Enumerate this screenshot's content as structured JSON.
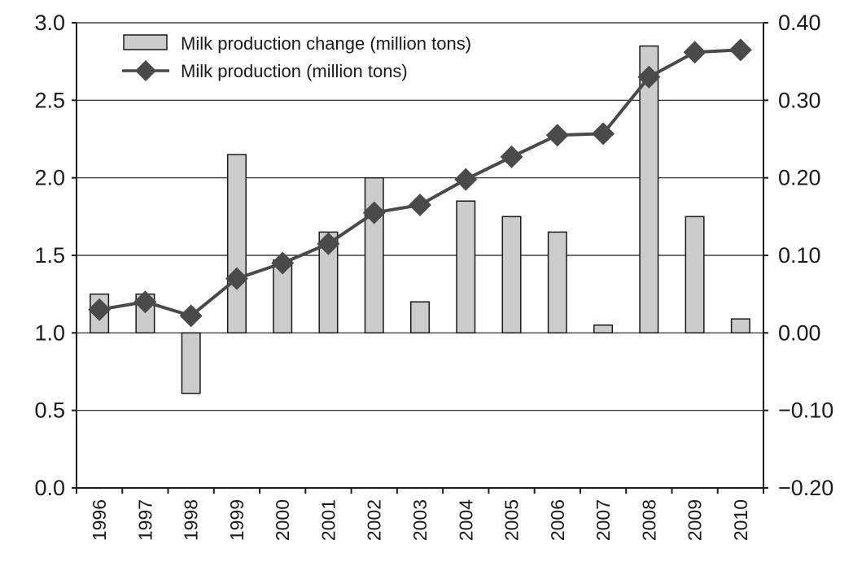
{
  "chart_data": {
    "type": "bar+line",
    "categories": [
      "1996",
      "1997",
      "1998",
      "1999",
      "2000",
      "2001",
      "2002",
      "2003",
      "2004",
      "2005",
      "2006",
      "2007",
      "2008",
      "2009",
      "2010"
    ],
    "series": [
      {
        "name": "Milk production change (million tons)",
        "kind": "bar",
        "axis": "left",
        "values": [
          1.25,
          1.25,
          0.61,
          2.15,
          1.47,
          1.65,
          2.0,
          1.2,
          1.85,
          1.75,
          1.65,
          1.05,
          2.85,
          1.75,
          1.09
        ]
      },
      {
        "name": "Milk production (million tons)",
        "kind": "line",
        "axis": "right",
        "values": [
          0.03,
          0.04,
          0.022,
          0.07,
          0.09,
          0.115,
          0.155,
          0.165,
          0.198,
          0.227,
          0.255,
          0.257,
          0.33,
          0.362,
          0.365
        ]
      }
    ],
    "y_left": {
      "range": [
        0.0,
        3.0
      ],
      "ticks": [
        0.0,
        0.5,
        1.0,
        1.5,
        2.0,
        2.5,
        3.0
      ],
      "tick_labels": [
        "0.0",
        "0.5",
        "1.0",
        "1.5",
        "2.0",
        "2.5",
        "3.0"
      ]
    },
    "y_right": {
      "range": [
        -0.2,
        0.4
      ],
      "ticks": [
        -0.2,
        -0.1,
        0.0,
        0.1,
        0.2,
        0.3,
        0.4
      ],
      "tick_labels": [
        "−0.20",
        "−0.10",
        "0.00",
        "0.10",
        "0.20",
        "0.30",
        "0.40"
      ]
    },
    "bar_baseline": 1.0,
    "grid": "horizontal",
    "legend_position": "top-left",
    "colors": {
      "bar_fill": "#cccccc",
      "bar_stroke": "#1a1a1a",
      "line": "#4a4a4a",
      "marker": "#4a4a4a",
      "grid": "#1a1a1a"
    }
  }
}
